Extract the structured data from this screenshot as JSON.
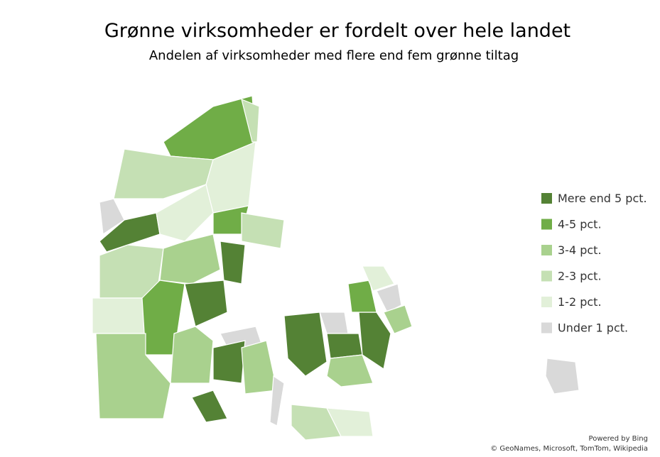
{
  "title": "Grønne virksomheder er fordelt over hele landet",
  "subtitle": "Andelen af virksomheder med flere end fem grønne tiltag",
  "legend": [
    {
      "label": "Mere end 5 pct.",
      "color": "#548235"
    },
    {
      "label": "4-5 pct.",
      "color": "#70ad47"
    },
    {
      "label": "3-4 pct.",
      "color": "#a9d18e"
    },
    {
      "label": "2-3 pct.",
      "color": "#c5e0b4"
    },
    {
      "label": "1-2 pct.",
      "color": "#e2f0d9"
    },
    {
      "label": "Under 1 pct.",
      "color": "#d9d9d9"
    }
  ],
  "attribution": [
    "Powered by Bing",
    "© GeoNames, Microsoft, TomTom, Wikipedia"
  ]
}
